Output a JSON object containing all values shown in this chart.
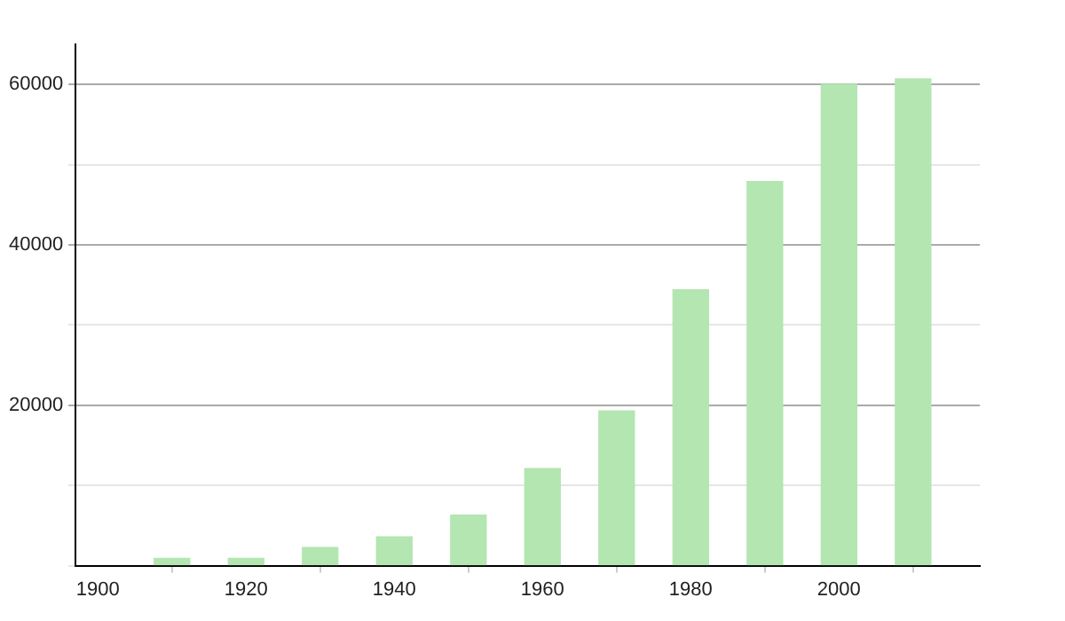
{
  "chart_data": {
    "type": "bar",
    "x": [
      1910,
      1920,
      1930,
      1940,
      1950,
      1960,
      1970,
      1980,
      1990,
      2000,
      2010
    ],
    "values": [
      900,
      900,
      2250,
      3600,
      6300,
      12100,
      19300,
      34400,
      47900,
      60000,
      60700
    ],
    "color": "#b3e6b0",
    "xlim": [
      1897,
      2019
    ],
    "xticks": [
      1900,
      1920,
      1940,
      1960,
      1980,
      2000
    ],
    "ylim": [
      0,
      65000
    ],
    "yticks": [
      {
        "value": 0,
        "label": null
      },
      {
        "value": 10000,
        "label": null
      },
      20000,
      {
        "value": 30000,
        "label": null
      },
      40000,
      {
        "value": 50000,
        "label": null
      },
      60000
    ],
    "grid": "y",
    "legend": false
  }
}
